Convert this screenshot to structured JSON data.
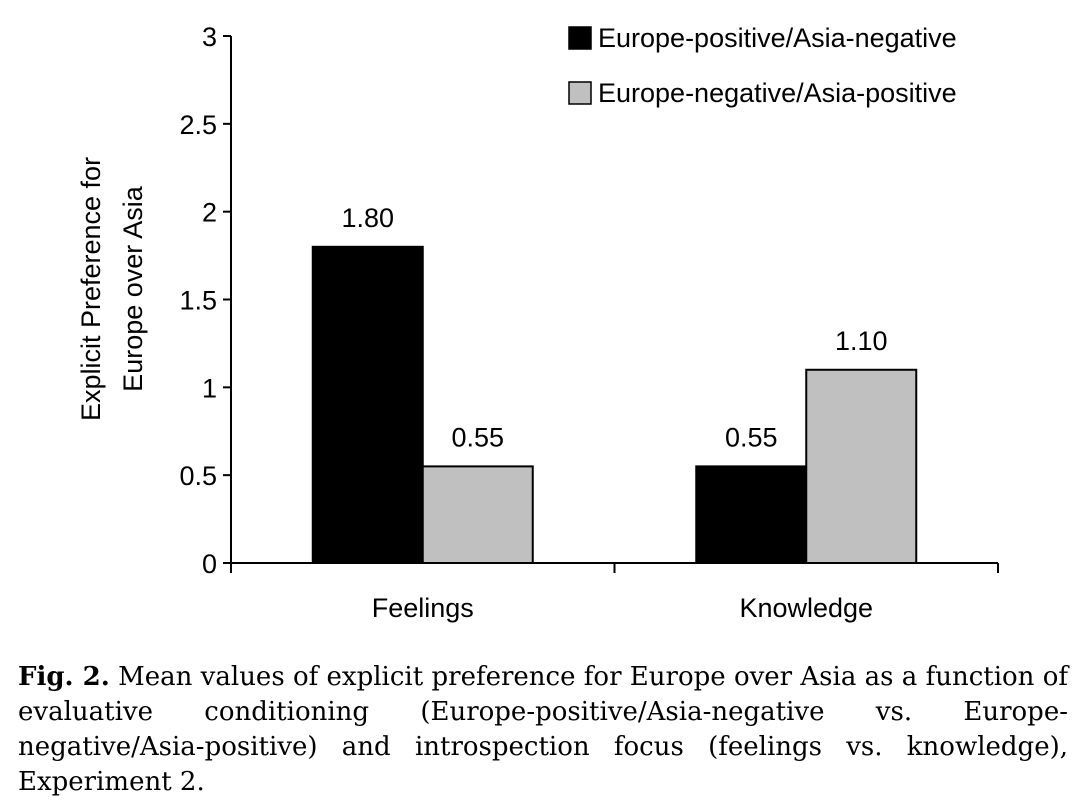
{
  "chart_data": {
    "type": "bar",
    "categories": [
      "Feelings",
      "Knowledge"
    ],
    "series": [
      {
        "name": "Europe-positive/Asia-negative",
        "values": [
          1.8,
          0.55
        ],
        "color": "#000000"
      },
      {
        "name": "Europe-negative/Asia-positive",
        "values": [
          0.55,
          1.1
        ],
        "color": "#c0c0c0"
      }
    ],
    "data_labels": [
      [
        "1.80",
        "0.55"
      ],
      [
        "0.55",
        "1.10"
      ]
    ],
    "ylabel_line1": "Explicit Preference for",
    "ylabel_line2": "Europe over Asia",
    "xlabel": "",
    "ylim": [
      0,
      3
    ],
    "yticks": [
      0,
      0.5,
      1,
      1.5,
      2,
      2.5,
      3
    ],
    "ytick_labels": [
      "0",
      "0.5",
      "1",
      "1.5",
      "2",
      "2.5",
      "3"
    ],
    "grid": false,
    "legend_position": "top-right"
  },
  "caption": {
    "label": "Fig. 2.",
    "text": "Mean values of explicit preference for Europe over Asia as a function of evaluative conditioning (Europe-positive/Asia-negative vs. Europe-negative/Asia-positive) and introspection focus (feelings vs. knowledge), Experiment 2."
  }
}
